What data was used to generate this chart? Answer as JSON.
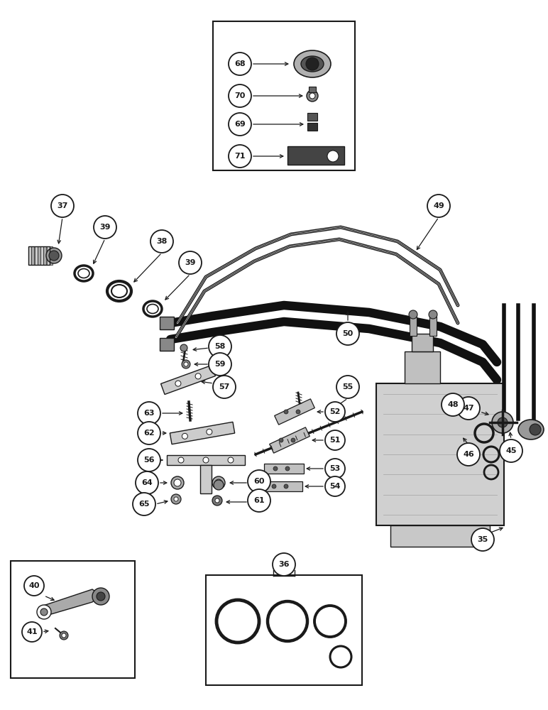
{
  "bg_color": "#ffffff",
  "lc": "#1a1a1a",
  "fig_width": 7.72,
  "fig_height": 10.0,
  "dpi": 100,
  "circle_r": 0.028,
  "fontsize": 8
}
